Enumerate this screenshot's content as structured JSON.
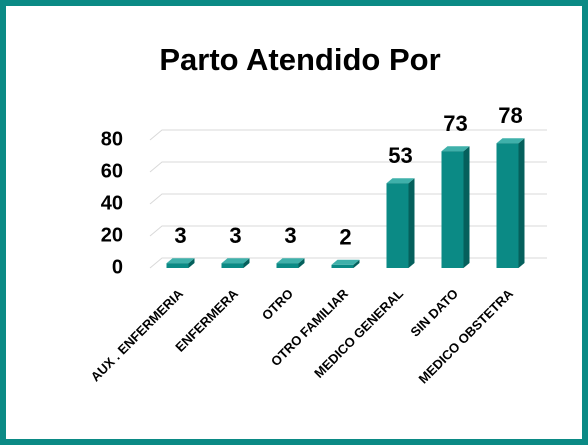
{
  "chart_data": {
    "type": "bar",
    "title": "Parto Atendido Por",
    "categories": [
      "AUX . ENFERMERIA",
      "ENFERMERA",
      "OTRO",
      "OTRO FAMILIAR",
      "MEDICO GENERAL",
      "SIN DATO",
      "MEDICO OBSTETRA"
    ],
    "values": [
      3,
      3,
      3,
      2,
      53,
      73,
      78
    ],
    "color": "#0b8a85",
    "ylim": [
      0,
      80
    ],
    "yticks": [
      0,
      20,
      40,
      60,
      80
    ],
    "grid": true
  }
}
